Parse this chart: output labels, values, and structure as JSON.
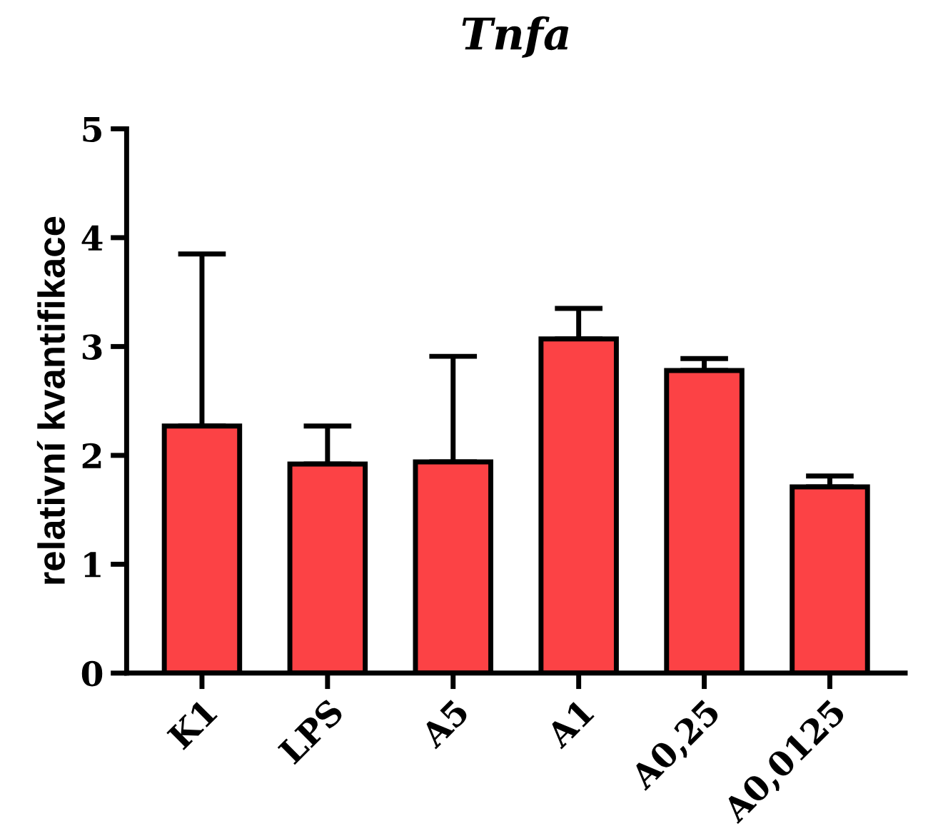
{
  "chart_data": {
    "type": "bar",
    "title": "Tnfa",
    "ylabel": "relativní kvantifikace",
    "categories": [
      "K1",
      "LPS",
      "A5",
      "A1",
      "A0,25",
      "A0,0125"
    ],
    "values": [
      2.27,
      1.92,
      1.94,
      3.07,
      2.78,
      1.71
    ],
    "errors": [
      [
        2.27,
        3.85
      ],
      [
        1.92,
        2.27
      ],
      [
        1.94,
        2.91
      ],
      [
        3.07,
        3.35
      ],
      [
        2.78,
        2.89
      ],
      [
        1.71,
        1.81
      ]
    ],
    "color": "#fc4245",
    "ylim": [
      0,
      5
    ],
    "yticks": [
      0,
      1,
      2,
      3,
      4,
      5
    ],
    "grid": false,
    "legend": false
  }
}
